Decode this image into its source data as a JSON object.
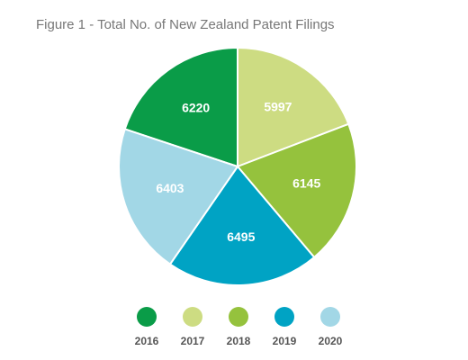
{
  "chart_data": {
    "type": "pie",
    "title": "Figure 1 - Total No. of New Zealand Patent Filings",
    "categories": [
      "2016",
      "2017",
      "2018",
      "2019",
      "2020"
    ],
    "values": [
      6220,
      5997,
      6145,
      6495,
      6403
    ],
    "colors": [
      "#0a9c48",
      "#cddc82",
      "#95c23d",
      "#00a3c4",
      "#a2d7e6"
    ],
    "legend": "bottom"
  }
}
